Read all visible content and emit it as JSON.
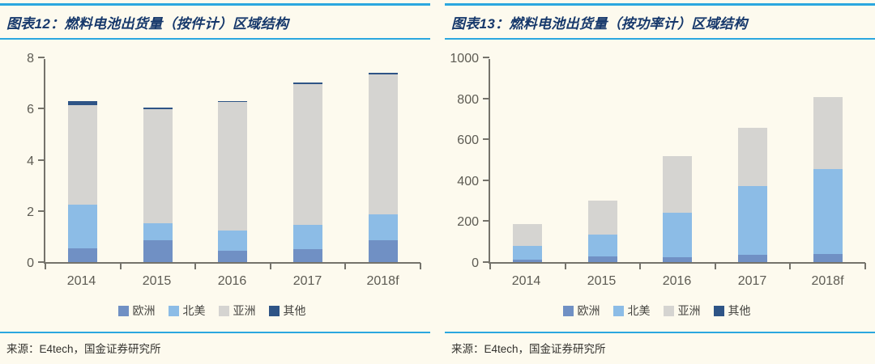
{
  "colors": {
    "accent_rule": "#2BA7DF",
    "title_text": "#16386B",
    "background": "#FDFAEE",
    "europe": "#7090C4",
    "north_america": "#8CBCE6",
    "asia": "#D5D4D1",
    "other": "#2E5486"
  },
  "chart_data": [
    {
      "type": "bar",
      "stacked": true,
      "title": "图表12：燃料电池出货量（按件计）区域结构",
      "source": "来源：E4tech，国金证券研究所",
      "categories": [
        "2014",
        "2015",
        "2016",
        "2017",
        "2018f"
      ],
      "series": [
        {
          "name": "欧洲",
          "color": "#7090C4",
          "values": [
            0.55,
            0.85,
            0.45,
            0.52,
            0.87
          ]
        },
        {
          "name": "北美",
          "color": "#8CBCE6",
          "values": [
            1.7,
            0.67,
            0.78,
            0.93,
            1.0
          ]
        },
        {
          "name": "亚洲",
          "color": "#D5D4D1",
          "values": [
            3.9,
            4.45,
            5.02,
            5.5,
            5.48
          ]
        },
        {
          "name": "其他",
          "color": "#2E5486",
          "values": [
            0.15,
            0.08,
            0.05,
            0.08,
            0.05
          ]
        }
      ],
      "xlabel": "",
      "ylabel": "",
      "ylim": [
        0,
        8
      ],
      "yticks": [
        0,
        2,
        4,
        6,
        8
      ],
      "grid": false,
      "legend_position": "bottom"
    },
    {
      "type": "bar",
      "stacked": true,
      "title": "图表13：燃料电池出货量（按功率计）区域结构",
      "source": "来源：E4tech，国金证券研究所",
      "categories": [
        "2014",
        "2015",
        "2016",
        "2017",
        "2018f"
      ],
      "series": [
        {
          "name": "欧洲",
          "color": "#7090C4",
          "values": [
            10,
            27,
            25,
            35,
            40
          ]
        },
        {
          "name": "北美",
          "color": "#8CBCE6",
          "values": [
            70,
            107,
            215,
            337,
            415
          ]
        },
        {
          "name": "亚洲",
          "color": "#D5D4D1",
          "values": [
            105,
            166,
            277,
            285,
            350
          ]
        },
        {
          "name": "其他",
          "color": "#2E5486",
          "values": [
            0,
            0,
            0,
            0,
            0
          ]
        }
      ],
      "xlabel": "",
      "ylabel": "",
      "ylim": [
        0,
        1000
      ],
      "yticks": [
        0,
        200,
        400,
        600,
        800,
        1000
      ],
      "grid": false,
      "legend_position": "bottom"
    }
  ]
}
